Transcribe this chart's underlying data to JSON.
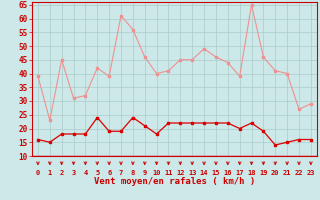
{
  "hours": [
    0,
    1,
    2,
    3,
    4,
    5,
    6,
    7,
    8,
    9,
    10,
    11,
    12,
    13,
    14,
    15,
    16,
    17,
    18,
    19,
    20,
    21,
    22,
    23
  ],
  "rafales": [
    39,
    23,
    45,
    31,
    32,
    42,
    39,
    61,
    56,
    46,
    40,
    41,
    45,
    45,
    49,
    46,
    44,
    39,
    65,
    46,
    41,
    40,
    27,
    29
  ],
  "moyen": [
    16,
    15,
    18,
    18,
    18,
    24,
    19,
    19,
    24,
    21,
    18,
    22,
    22,
    22,
    22,
    22,
    22,
    20,
    22,
    19,
    14,
    15,
    16,
    16
  ],
  "bg_color": "#cce8e8",
  "grid_color": "#aacccc",
  "line_color_rafales": "#f09090",
  "line_color_moyen": "#dd0000",
  "marker_color_rafales": "#f09090",
  "marker_color_moyen": "#dd0000",
  "xlabel": "Vent moyen/en rafales ( km/h )",
  "ylim_min": 10,
  "ylim_max": 65,
  "yticks": [
    10,
    15,
    20,
    25,
    30,
    35,
    40,
    45,
    50,
    55,
    60,
    65
  ],
  "tick_color": "#cc0000",
  "arrow_color": "#cc0000",
  "spine_color": "#cc0000"
}
